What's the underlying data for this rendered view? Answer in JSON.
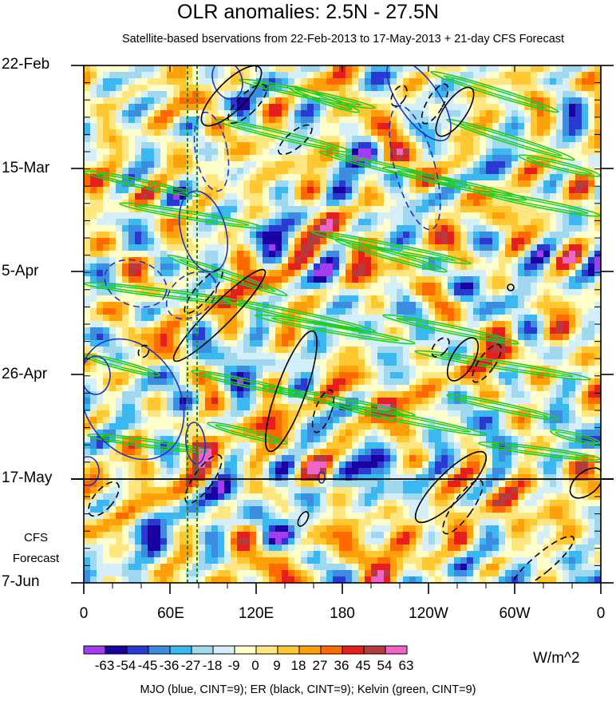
{
  "chart_data": {
    "type": "heatmap",
    "title": "OLR anomalies: 2.5N - 27.5N",
    "subtitle": "Satellite-based bservations from 22-Feb-2013 to 17-May-2013 + 21-day CFS Forecast",
    "y_tick_labels": [
      "22-Feb",
      "15-Mar",
      "5-Apr",
      "26-Apr",
      "17-May",
      "7-Jun"
    ],
    "x_tick_labels": [
      "0",
      "60E",
      "120E",
      "180",
      "120W",
      "60W",
      "0"
    ],
    "forecast_label": [
      "CFS",
      "Forecast"
    ],
    "observation_end": "17-May",
    "colorbar": {
      "labels": [
        "-63",
        "-54",
        "-45",
        "-36",
        "-27",
        "-18",
        "-9",
        "0",
        "9",
        "18",
        "27",
        "36",
        "45",
        "54",
        "63"
      ],
      "colors": [
        "#a43cf0",
        "#1a00a0",
        "#2a3ad0",
        "#3c8ce0",
        "#3cb8f0",
        "#a0d8f0",
        "#d4eefa",
        "#ffffcc",
        "#ffe680",
        "#ffc830",
        "#ffa00a",
        "#ff6a00",
        "#e61e1e",
        "#b43c3c",
        "#f064c8"
      ],
      "units": "W/m^2"
    },
    "overlays": {
      "note": "MJO (blue, CINT=9); ER (black, CINT=9); Kelvin (green, CINT=9)",
      "mjo_color": "#1f32c8",
      "er_color": "#000000",
      "kelvin_color": "#22cc22",
      "reference_lines_color": "#1a8a1a"
    }
  }
}
